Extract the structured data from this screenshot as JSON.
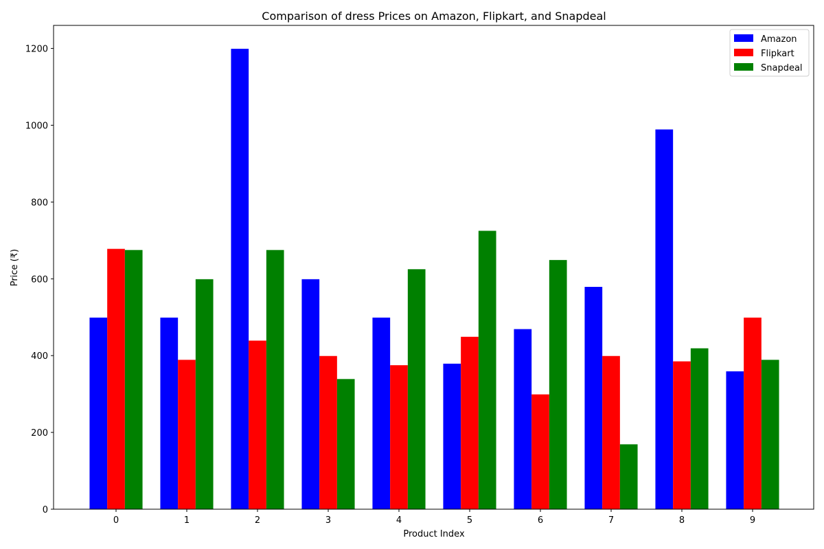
{
  "chart_data": {
    "type": "bar",
    "title": "Comparison of dress Prices on Amazon, Flipkart, and Snapdeal",
    "xlabel": "Product Index",
    "ylabel": "Price (₹)",
    "categories": [
      "0",
      "1",
      "2",
      "3",
      "4",
      "5",
      "6",
      "7",
      "8",
      "9"
    ],
    "ylim": [
      0,
      1260
    ],
    "yticks": [
      0,
      200,
      400,
      600,
      800,
      1000,
      1200
    ],
    "grid": false,
    "legend_position": "top-right",
    "series": [
      {
        "name": "Amazon",
        "color": "#0000ff",
        "values": [
          499,
          499,
          1199,
          599,
          499,
          379,
          469,
          579,
          989,
          359
        ]
      },
      {
        "name": "Flipkart",
        "color": "#ff0000",
        "values": [
          678,
          389,
          439,
          399,
          375,
          449,
          299,
          399,
          385,
          499
        ]
      },
      {
        "name": "Snapdeal",
        "color": "#008000",
        "values": [
          675,
          599,
          675,
          339,
          625,
          725,
          649,
          169,
          419,
          389
        ]
      }
    ]
  }
}
